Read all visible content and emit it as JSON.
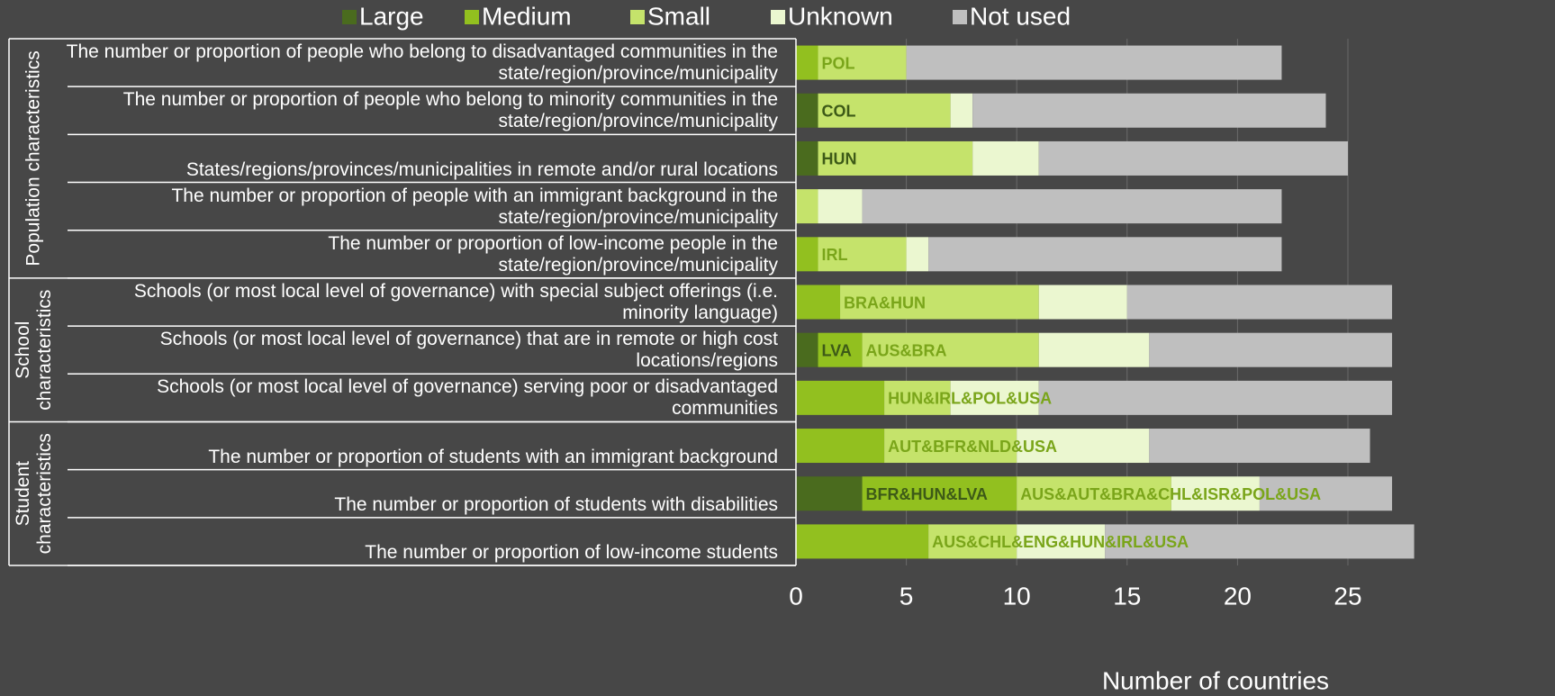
{
  "chart_data": {
    "type": "stacked_barh",
    "xlabel": "Number of countries",
    "groups": [
      {
        "label": "Population characteristics",
        "rows": [
          0,
          4
        ]
      },
      {
        "label": "School characteristics",
        "rows": [
          5,
          7
        ]
      },
      {
        "label": "Student characteristics",
        "rows": [
          8,
          10
        ]
      }
    ],
    "categories": [
      "The number or proportion of people who belong to disadvantaged communities in the state/region/province/municipality",
      "The number or proportion of people who belong to minority communities in the state/region/province/municipality",
      "States/regions/provinces/municipalities in remote and/or rural locations",
      "The number or proportion of people with an immigrant background in the state/region/province/municipality",
      "The number or proportion of low-income people in the state/region/province/municipality",
      "Schools (or most local level of governance) with special subject offerings (i.e. minority language)",
      "Schools (or most local level of governance) that are in remote or high cost locations/regions",
      "Schools (or most local level of governance) serving poor or disadvantaged communities",
      "The number or proportion of students with an immigrant background",
      "The number or proportion of students with disabilities",
      "The number or proportion of low-income students"
    ],
    "series": [
      {
        "name": "Large",
        "color": "#4a6b1e",
        "values": [
          0,
          1,
          1,
          0,
          0,
          0,
          1,
          0,
          0,
          3,
          0
        ]
      },
      {
        "name": "Medium",
        "color": "#92c01f",
        "values": [
          1,
          0,
          0,
          0,
          1,
          2,
          2,
          4,
          4,
          7,
          6
        ]
      },
      {
        "name": "Small",
        "color": "#c5e36b",
        "values": [
          4,
          6,
          7,
          1,
          4,
          9,
          8,
          3,
          6,
          7,
          4
        ]
      },
      {
        "name": "Unknown",
        "color": "#ebf7d0",
        "values": [
          0,
          1,
          3,
          2,
          1,
          4,
          5,
          4,
          6,
          4,
          4
        ]
      },
      {
        "name": "Not used",
        "color": "#bfbfbf",
        "values": [
          17,
          16,
          14,
          19,
          16,
          12,
          11,
          16,
          10,
          6,
          14
        ]
      }
    ],
    "annotations": [
      {
        "text": "POL",
        "row": 0,
        "series": 2,
        "color": "#7aa51a"
      },
      {
        "text": "COL",
        "row": 1,
        "series": 2,
        "color": "#3d5a17"
      },
      {
        "text": "HUN",
        "row": 2,
        "series": 2,
        "color": "#3d5a17"
      },
      {
        "text": "IRL",
        "row": 4,
        "series": 2,
        "color": "#7aa51a"
      },
      {
        "text": "BRA&HUN",
        "row": 5,
        "series": 2,
        "color": "#7aa51a"
      },
      {
        "text": "LVA",
        "row": 6,
        "series": 1,
        "color": "#3d5a17"
      },
      {
        "text": "AUS&BRA",
        "row": 6,
        "series": 2,
        "color": "#7aa51a"
      },
      {
        "text": "HUN&IRL&POL&USA",
        "row": 7,
        "series": 2,
        "color": "#7aa51a"
      },
      {
        "text": "AUT&BFR&NLD&USA",
        "row": 8,
        "series": 2,
        "color": "#7aa51a"
      },
      {
        "text": "BFR&HUN&LVA",
        "row": 9,
        "series": 1,
        "color": "#3d5a17"
      },
      {
        "text": "AUS&AUT&BRA&CHL&ISR&POL&USA",
        "row": 9,
        "series": 2,
        "color": "#7aa51a"
      },
      {
        "text": "AUS&CHL&ENG&HUN&IRL&USA",
        "row": 10,
        "series": 2,
        "color": "#7aa51a"
      }
    ],
    "xlim": [
      0,
      28
    ],
    "xticks": [
      0,
      5,
      10,
      15,
      20,
      25
    ],
    "grid": true
  }
}
